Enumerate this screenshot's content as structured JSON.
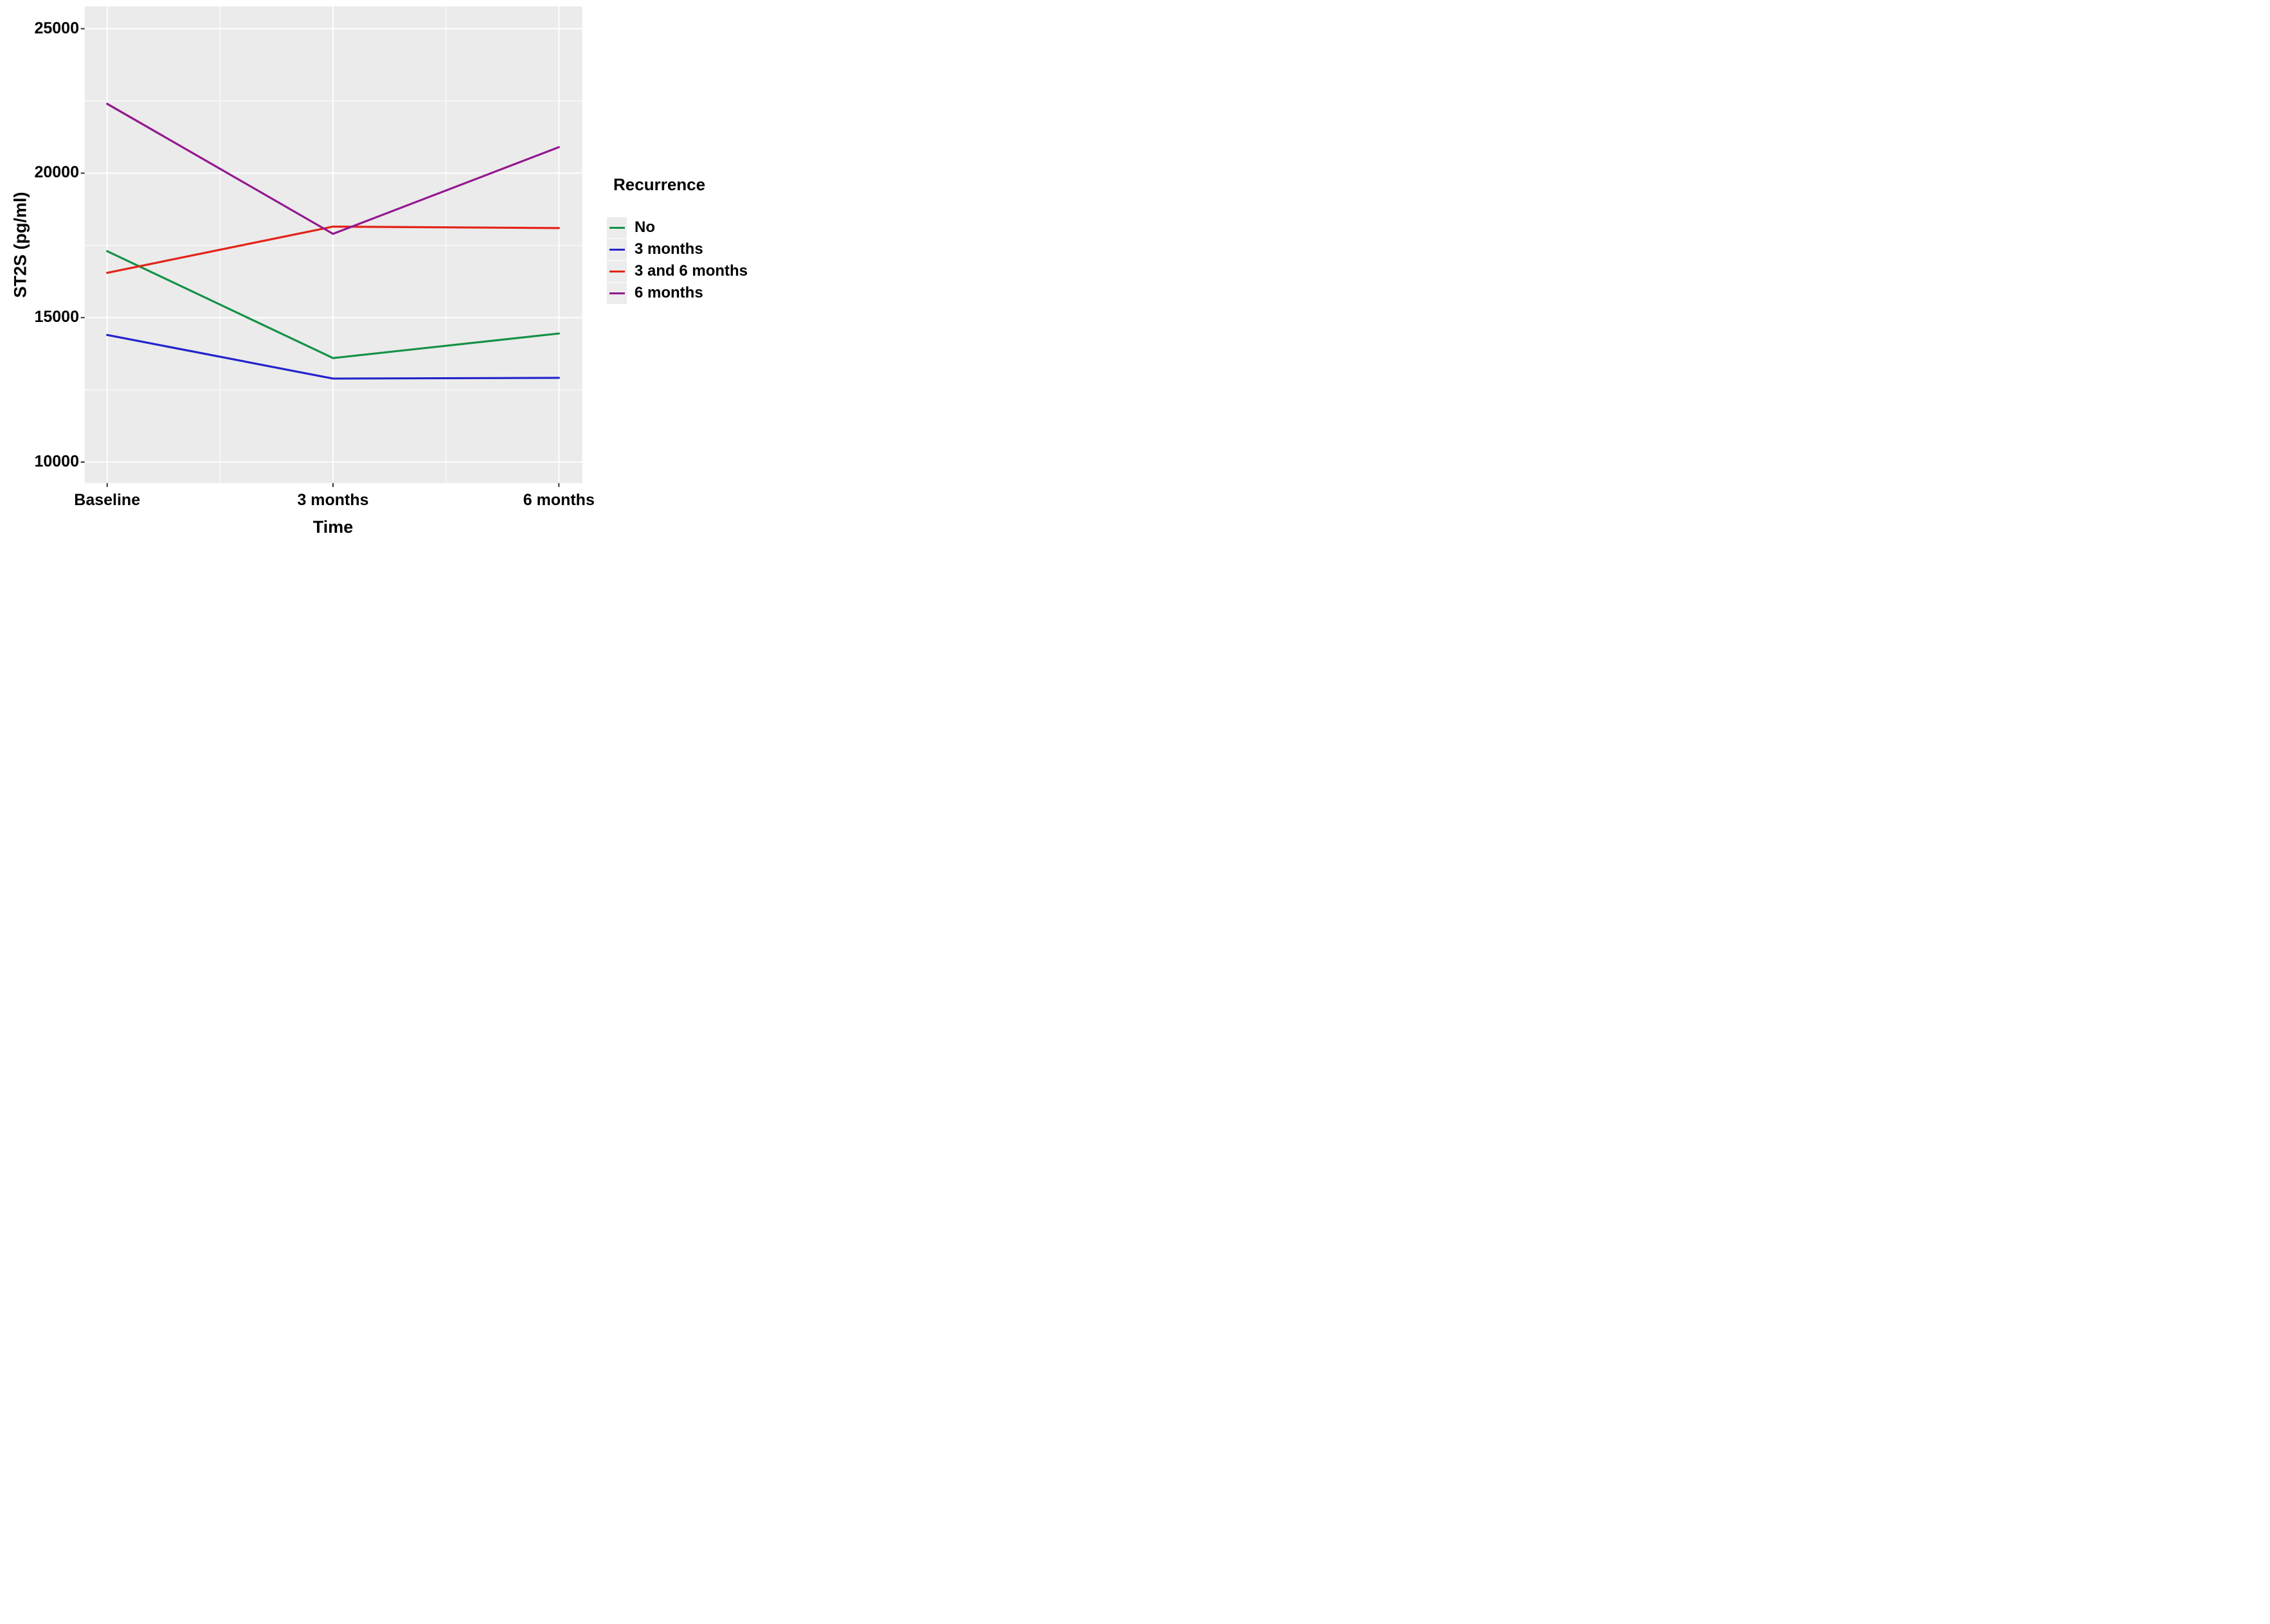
{
  "chart_data": {
    "type": "line",
    "title": "",
    "xlabel": "Time",
    "ylabel": "ST2S (pg/ml)",
    "categories": [
      "Baseline",
      "3 months",
      "6 months"
    ],
    "series": [
      {
        "name": "No",
        "color": "#159145",
        "values": [
          17300,
          13600,
          14450
        ]
      },
      {
        "name": "3 months",
        "color": "#2323cc",
        "values": [
          14400,
          12890,
          12915
        ]
      },
      {
        "name": "3 and 6 months",
        "color": "#e42318",
        "values": [
          16550,
          18150,
          18100
        ]
      },
      {
        "name": "6 months",
        "color": "#93188f",
        "values": [
          22400,
          17900,
          20900
        ]
      }
    ],
    "y_ticks": [
      10000,
      15000,
      20000,
      25000
    ],
    "y_minor_ticks": [
      12500,
      17500,
      22500
    ],
    "ylim": [
      9250,
      25780
    ],
    "grid": true,
    "legend_title": "Recurrence",
    "legend_position": "right",
    "colors": {
      "panel_background": "#ebebeb",
      "grid": "#ffffff",
      "tick": "#333333",
      "text": "#000000"
    }
  }
}
